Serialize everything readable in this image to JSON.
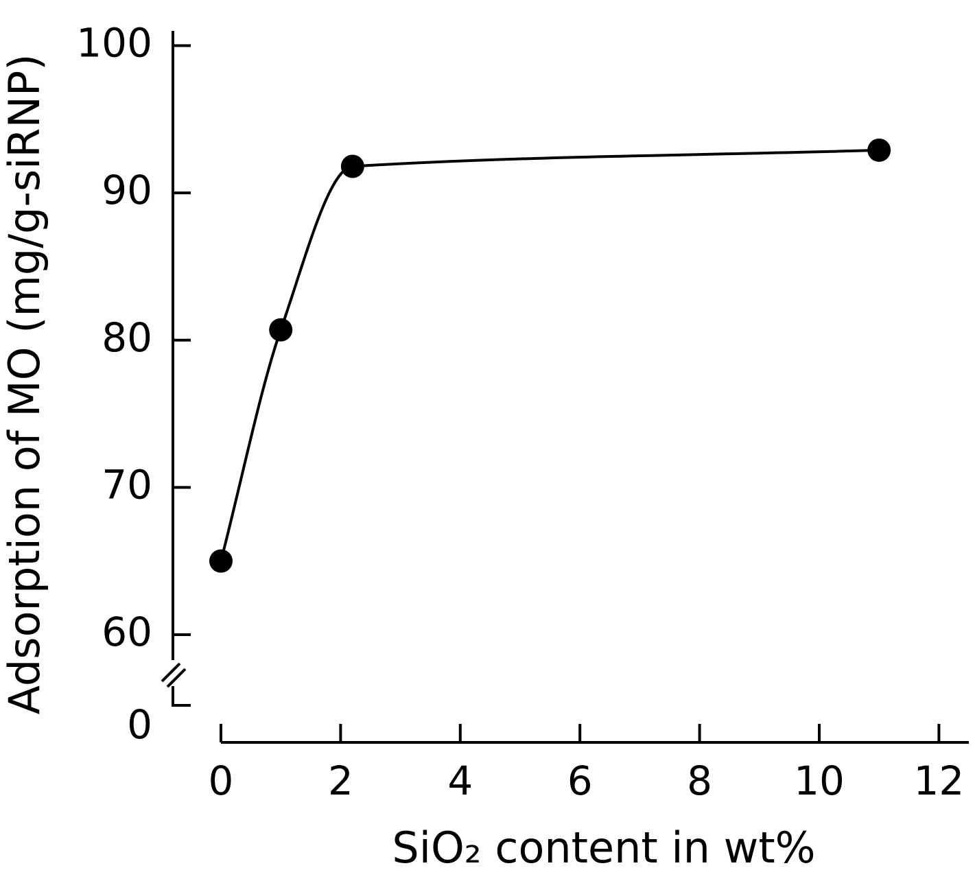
{
  "chart_data": {
    "type": "line",
    "x_label": "SiO₂ content in wt%",
    "y_label": "Adsorption of MO (mg/g-siRNP)",
    "x": [
      0,
      1,
      2.2,
      11
    ],
    "values": [
      65,
      80.7,
      91.8,
      92.9
    ],
    "color": "#000000",
    "xlim": [
      0,
      12.5
    ],
    "xticks": [
      0,
      2,
      4,
      6,
      8,
      10,
      12
    ],
    "ylim": [
      0,
      101
    ],
    "yticks": [
      0,
      60,
      70,
      80,
      90,
      100
    ],
    "y_axis_break": true
  }
}
